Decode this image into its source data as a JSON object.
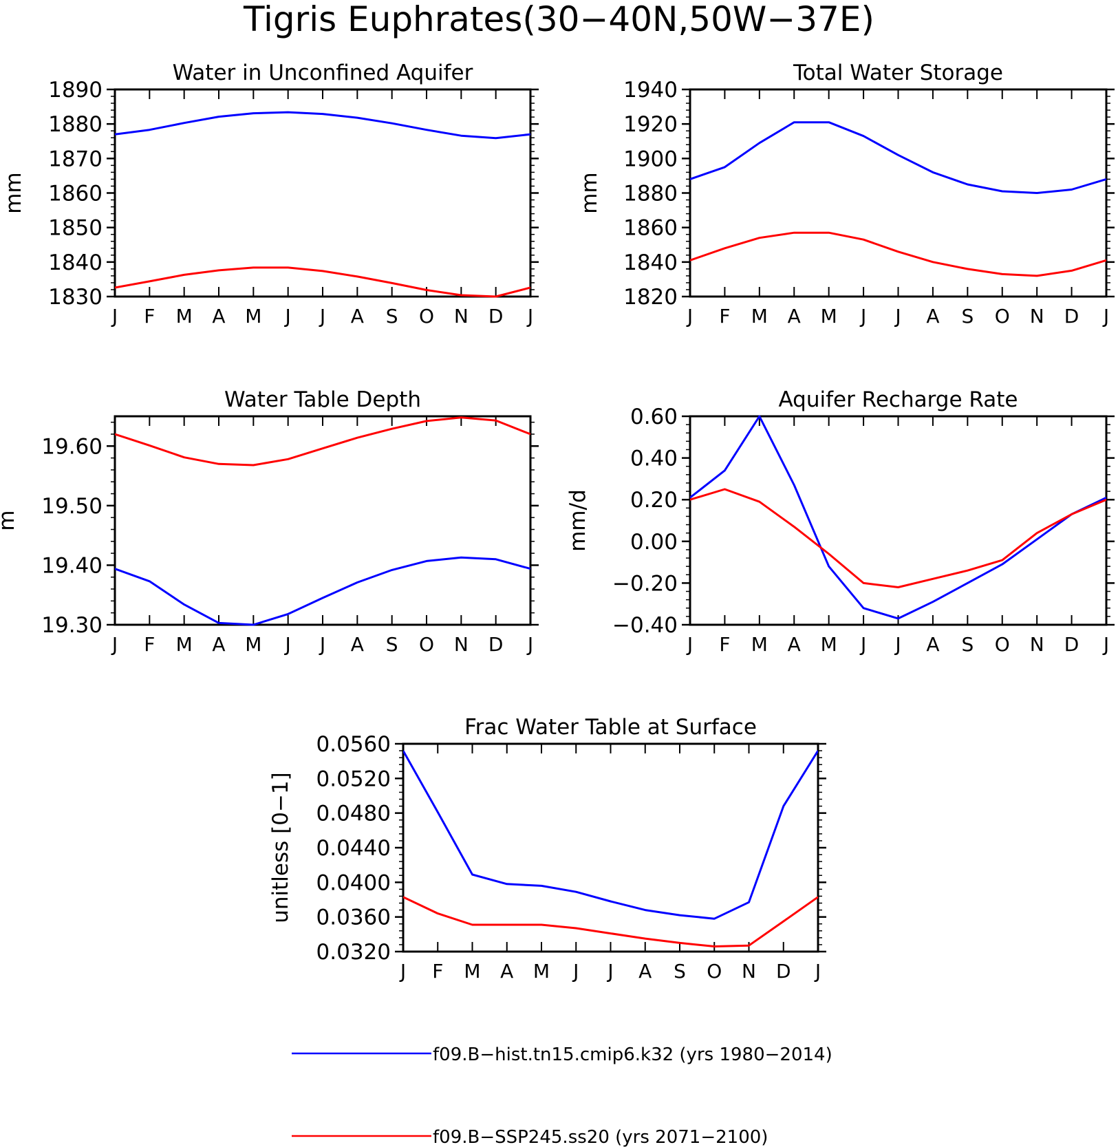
{
  "figure": {
    "title": "Tigris Euphrates(30−40N,50W−37E)"
  },
  "legend": {
    "placement": "bottom",
    "entries": [
      {
        "label": "f09.B−hist.tn15.cmip6.k32 (yrs 1980−2014)",
        "color": "#0000ff"
      },
      {
        "label": "f09.B−SSP245.ss20 (yrs 2071−2100)",
        "color": "#ff0000"
      }
    ]
  },
  "chart_data": [
    {
      "type": "line",
      "title": "Water in Unconfined Aquifer",
      "ylabel": "mm",
      "categories": [
        "J",
        "F",
        "M",
        "A",
        "M",
        "J",
        "J",
        "A",
        "S",
        "O",
        "N",
        "D",
        "J"
      ],
      "ylim": [
        1830,
        1890
      ],
      "yticks": [
        1830,
        1840,
        1850,
        1860,
        1870,
        1880,
        1890
      ],
      "ytick_labels": [
        "1830",
        "1840",
        "1850",
        "1860",
        "1870",
        "1880",
        "1890"
      ],
      "grid": false,
      "series": [
        {
          "name": "f09.B−hist.tn15.cmip6.k32 (yrs 1980−2014)",
          "color": "#0000ff",
          "values": [
            1877.0,
            1878.3,
            1880.3,
            1882.1,
            1883.1,
            1883.4,
            1882.9,
            1881.8,
            1880.2,
            1878.3,
            1876.6,
            1875.9,
            1877.0
          ]
        },
        {
          "name": "f09.B−SSP245.ss20 (yrs 2071−2100)",
          "color": "#ff0000",
          "values": [
            1832.6,
            1834.4,
            1836.3,
            1837.6,
            1838.4,
            1838.4,
            1837.4,
            1835.8,
            1833.9,
            1831.9,
            1830.4,
            1830.0,
            1832.6
          ]
        }
      ]
    },
    {
      "type": "line",
      "title": "Total Water Storage",
      "ylabel": "mm",
      "categories": [
        "J",
        "F",
        "M",
        "A",
        "M",
        "J",
        "J",
        "A",
        "S",
        "O",
        "N",
        "D",
        "J"
      ],
      "ylim": [
        1820,
        1940
      ],
      "yticks": [
        1820,
        1840,
        1860,
        1880,
        1900,
        1920,
        1940
      ],
      "ytick_labels": [
        "1820",
        "1840",
        "1860",
        "1880",
        "1900",
        "1920",
        "1940"
      ],
      "grid": false,
      "series": [
        {
          "name": "f09.B−hist.tn15.cmip6.k32 (yrs 1980−2014)",
          "color": "#0000ff",
          "values": [
            1888,
            1895,
            1909,
            1921,
            1921,
            1913,
            1902,
            1892,
            1885,
            1881,
            1880,
            1882,
            1888
          ]
        },
        {
          "name": "f09.B−SSP245.ss20 (yrs 2071−2100)",
          "color": "#ff0000",
          "values": [
            1841,
            1848,
            1854,
            1857,
            1857,
            1853,
            1846,
            1840,
            1836,
            1833,
            1832,
            1835,
            1841
          ]
        }
      ]
    },
    {
      "type": "line",
      "title": "Water Table Depth",
      "ylabel": "m",
      "categories": [
        "J",
        "F",
        "M",
        "A",
        "M",
        "J",
        "J",
        "A",
        "S",
        "O",
        "N",
        "D",
        "J"
      ],
      "ylim": [
        19.3,
        19.65
      ],
      "yticks": [
        19.3,
        19.4,
        19.5,
        19.6
      ],
      "ytick_labels": [
        "19.30",
        "19.40",
        "19.50",
        "19.60"
      ],
      "grid": false,
      "series": [
        {
          "name": "f09.B−hist.tn15.cmip6.k32 (yrs 1980−2014)",
          "color": "#0000ff",
          "values": [
            19.394,
            19.373,
            19.334,
            19.303,
            19.3,
            19.318,
            19.345,
            19.371,
            19.392,
            19.407,
            19.413,
            19.41,
            19.394
          ]
        },
        {
          "name": "f09.B−SSP245.ss20 (yrs 2071−2100)",
          "color": "#ff0000",
          "values": [
            19.62,
            19.601,
            19.581,
            19.57,
            19.568,
            19.578,
            19.596,
            19.614,
            19.629,
            19.642,
            19.648,
            19.643,
            19.62
          ]
        }
      ]
    },
    {
      "type": "line",
      "title": "Aquifer Recharge Rate",
      "ylabel": "mm/d",
      "categories": [
        "J",
        "F",
        "M",
        "A",
        "M",
        "J",
        "J",
        "A",
        "S",
        "O",
        "N",
        "D",
        "J"
      ],
      "ylim": [
        -0.4,
        0.6
      ],
      "yticks": [
        -0.4,
        -0.2,
        0.0,
        0.2,
        0.4,
        0.6
      ],
      "ytick_labels": [
        "−0.40",
        "−0.20",
        "0.00",
        "0.20",
        "0.40",
        "0.60"
      ],
      "grid": false,
      "series": [
        {
          "name": "f09.B−hist.tn15.cmip6.k32 (yrs 1980−2014)",
          "color": "#0000ff",
          "values": [
            0.21,
            0.34,
            0.6,
            0.27,
            -0.12,
            -0.32,
            -0.37,
            -0.29,
            -0.2,
            -0.11,
            0.01,
            0.13,
            0.21
          ]
        },
        {
          "name": "f09.B−SSP245.ss20 (yrs 2071−2100)",
          "color": "#ff0000",
          "values": [
            0.2,
            0.25,
            0.19,
            0.07,
            -0.06,
            -0.2,
            -0.22,
            -0.18,
            -0.14,
            -0.09,
            0.04,
            0.13,
            0.2
          ]
        }
      ]
    },
    {
      "type": "line",
      "title": "Frac Water Table at Surface",
      "ylabel": "unitless [0−1]",
      "categories": [
        "J",
        "F",
        "M",
        "A",
        "M",
        "J",
        "J",
        "A",
        "S",
        "O",
        "N",
        "D",
        "J"
      ],
      "ylim": [
        0.032,
        0.056
      ],
      "yticks": [
        0.032,
        0.036,
        0.04,
        0.044,
        0.048,
        0.052,
        0.056
      ],
      "ytick_labels": [
        "0.0320",
        "0.0360",
        "0.0400",
        "0.0440",
        "0.0480",
        "0.0520",
        "0.0560"
      ],
      "grid": false,
      "series": [
        {
          "name": "f09.B−hist.tn15.cmip6.k32 (yrs 1980−2014)",
          "color": "#0000ff",
          "values": [
            0.0552,
            0.0481,
            0.0409,
            0.0398,
            0.0396,
            0.0389,
            0.0378,
            0.0368,
            0.0362,
            0.0358,
            0.0377,
            0.0488,
            0.0552
          ]
        },
        {
          "name": "f09.B−SSP245.ss20 (yrs 2071−2100)",
          "color": "#ff0000",
          "values": [
            0.0383,
            0.0364,
            0.0351,
            0.0351,
            0.0351,
            0.0347,
            0.0341,
            0.0335,
            0.033,
            0.0326,
            0.0327,
            0.0355,
            0.0383
          ]
        }
      ]
    }
  ]
}
